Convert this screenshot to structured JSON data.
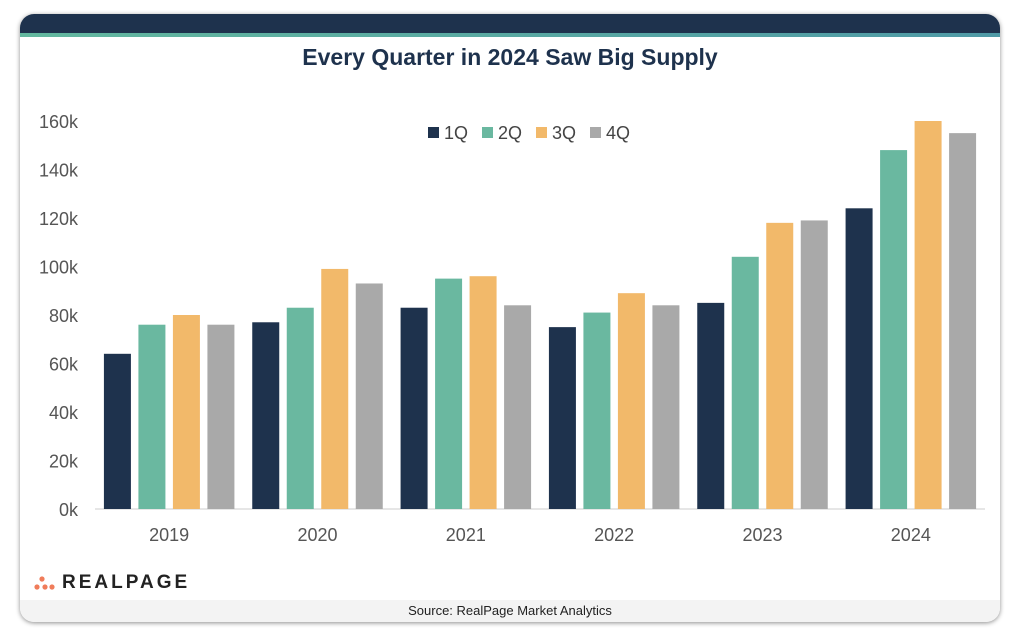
{
  "chart_data": {
    "type": "bar",
    "title": "Every Quarter in 2024 Saw Big Supply",
    "categories": [
      "2019",
      "2020",
      "2021",
      "2022",
      "2023",
      "2024"
    ],
    "series": [
      {
        "name": "1Q",
        "color": "#1e324d",
        "values": [
          64,
          77,
          83,
          75,
          85,
          124
        ]
      },
      {
        "name": "2Q",
        "color": "#6ab8a0",
        "values": [
          76,
          83,
          95,
          81,
          104,
          148
        ]
      },
      {
        "name": "3Q",
        "color": "#f2b96a",
        "values": [
          80,
          99,
          96,
          89,
          118,
          160
        ]
      },
      {
        "name": "4Q",
        "color": "#a9a9a9",
        "values": [
          76,
          93,
          84,
          84,
          119,
          155
        ]
      }
    ],
    "ylim": [
      0,
      160
    ],
    "yticks": [
      0,
      20,
      40,
      60,
      80,
      100,
      120,
      140,
      160
    ],
    "ytick_labels": [
      "0k",
      "20k",
      "40k",
      "60k",
      "80k",
      "100k",
      "120k",
      "140k",
      "160k"
    ],
    "unit": "thousands",
    "legend": "top-center",
    "grid": false
  },
  "brand": {
    "logo_text": "REALPAGE",
    "logo_dot_color": "#f07c5a"
  },
  "footer": {
    "source": "Source: RealPage Market Analytics"
  },
  "colors": {
    "header": "#1e324d",
    "accent": "#63b89f"
  }
}
